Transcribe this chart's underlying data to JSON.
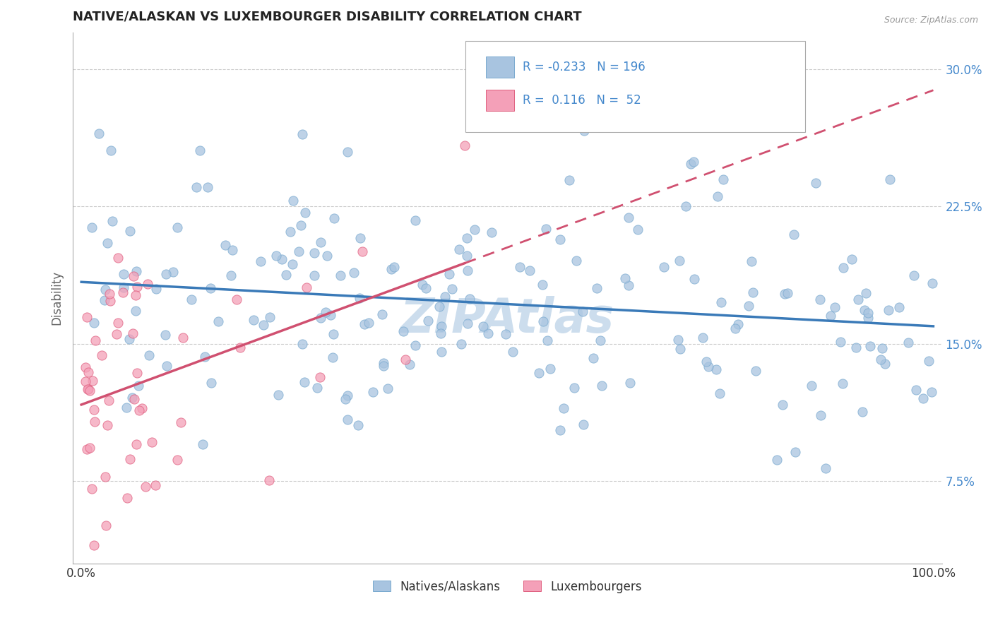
{
  "title": "NATIVE/ALASKAN VS LUXEMBOURGER DISABILITY CORRELATION CHART",
  "source": "Source: ZipAtlas.com",
  "ylabel": "Disability",
  "xlim": [
    0.0,
    1.0
  ],
  "ylim": [
    0.03,
    0.32
  ],
  "yticks": [
    0.075,
    0.15,
    0.225,
    0.3
  ],
  "ytick_labels": [
    "7.5%",
    "15.0%",
    "22.5%",
    "30.0%"
  ],
  "xticks": [
    0.0,
    1.0
  ],
  "xtick_labels": [
    "0.0%",
    "100.0%"
  ],
  "legend_labels": [
    "Natives/Alaskans",
    "Luxembourgers"
  ],
  "R_native": -0.233,
  "N_native": 196,
  "R_luxem": 0.116,
  "N_luxem": 52,
  "color_native": "#a8c4e0",
  "color_native_edge": "#7aaad0",
  "color_luxem": "#f4a0b8",
  "color_luxem_edge": "#e06080",
  "trendline_native_color": "#3a7ab8",
  "trendline_luxem_color": "#d05070",
  "background_color": "#ffffff",
  "grid_color": "#cccccc",
  "title_color": "#222222",
  "ytick_color": "#4488cc",
  "xtick_color": "#333333",
  "legend_R_color": "#4488cc",
  "watermark_color": "#ccdded"
}
